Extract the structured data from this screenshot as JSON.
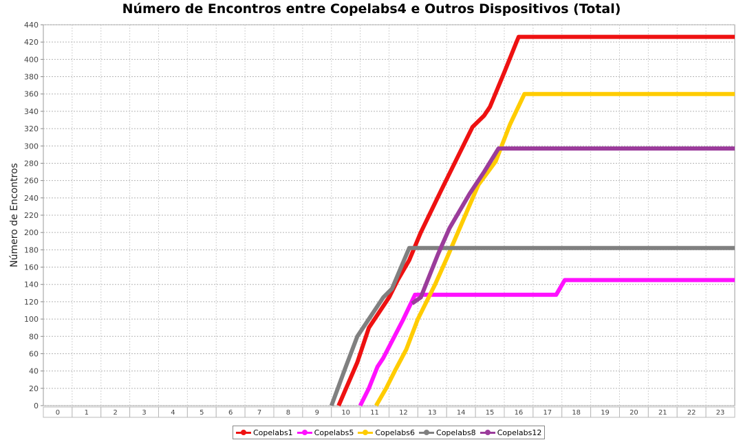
{
  "chart_data": {
    "type": "line",
    "title": "Número de Encontros entre Copelabs4 e Outros Dispositivos (Total)",
    "xlabel": "",
    "ylabel": "Número de Encontros",
    "categories": [
      "0",
      "1",
      "2",
      "3",
      "4",
      "5",
      "6",
      "7",
      "8",
      "9",
      "10",
      "11",
      "12",
      "13",
      "14",
      "15",
      "16",
      "17",
      "18",
      "19",
      "20",
      "21",
      "22",
      "23"
    ],
    "xlim": [
      -0.5,
      23.5
    ],
    "ylim": [
      0,
      440
    ],
    "ytick_step": 20,
    "grid": true,
    "legend_position": "bottom",
    "series": [
      {
        "name": "Copelabs1",
        "color": "#ee1111",
        "points": [
          [
            9.75,
            0
          ],
          [
            10.4,
            50
          ],
          [
            10.8,
            90
          ],
          [
            11.5,
            125
          ],
          [
            11.8,
            145
          ],
          [
            12.2,
            168
          ],
          [
            12.6,
            200
          ],
          [
            13.3,
            248
          ],
          [
            13.7,
            275
          ],
          [
            14.4,
            322
          ],
          [
            14.8,
            335
          ],
          [
            15.0,
            345
          ],
          [
            15.5,
            385
          ],
          [
            15.9,
            418
          ],
          [
            16.0,
            426
          ],
          [
            23.5,
            426
          ]
        ]
      },
      {
        "name": "Copelabs5",
        "color": "#ff11ff",
        "points": [
          [
            10.5,
            0
          ],
          [
            10.8,
            20
          ],
          [
            11.1,
            45
          ],
          [
            11.3,
            55
          ],
          [
            12.0,
            100
          ],
          [
            12.4,
            128
          ],
          [
            17.3,
            128
          ],
          [
            17.6,
            145
          ],
          [
            23.5,
            145
          ]
        ]
      },
      {
        "name": "Copelabs6",
        "color": "#ffcc00",
        "points": [
          [
            11.05,
            0
          ],
          [
            11.4,
            20
          ],
          [
            11.7,
            40
          ],
          [
            12.1,
            65
          ],
          [
            12.5,
            100
          ],
          [
            13.1,
            140
          ],
          [
            13.5,
            170
          ],
          [
            14.3,
            232
          ],
          [
            14.6,
            255
          ],
          [
            15.2,
            282
          ],
          [
            15.7,
            325
          ],
          [
            16.2,
            360
          ],
          [
            23.5,
            360
          ]
        ]
      },
      {
        "name": "Copelabs8",
        "color": "#808080",
        "points": [
          [
            9.5,
            0
          ],
          [
            10.0,
            45
          ],
          [
            10.4,
            80
          ],
          [
            10.8,
            100
          ],
          [
            11.3,
            125
          ],
          [
            11.6,
            135
          ],
          [
            12.2,
            182
          ],
          [
            23.5,
            182
          ]
        ]
      },
      {
        "name": "Copelabs12",
        "color": "#9b3c9b",
        "points": [
          [
            12.3,
            118
          ],
          [
            12.6,
            125
          ],
          [
            13.2,
            175
          ],
          [
            13.6,
            205
          ],
          [
            14.3,
            245
          ],
          [
            14.8,
            270
          ],
          [
            15.3,
            297
          ],
          [
            23.5,
            297
          ]
        ]
      }
    ]
  }
}
